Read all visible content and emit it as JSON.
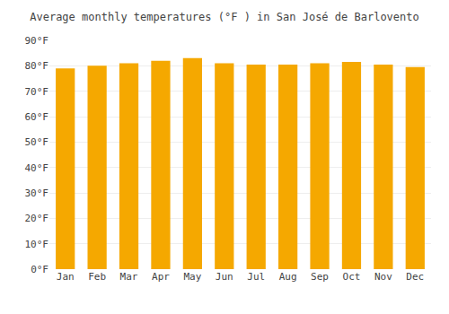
{
  "chart_data": {
    "type": "bar",
    "title": "Average monthly temperatures (°F ) in San José de Barlovento",
    "categories": [
      "Jan",
      "Feb",
      "Mar",
      "Apr",
      "May",
      "Jun",
      "Jul",
      "Aug",
      "Sep",
      "Oct",
      "Nov",
      "Dec"
    ],
    "values": [
      79,
      80,
      81,
      82,
      83,
      81,
      80.5,
      80.5,
      81,
      81.5,
      80.5,
      79.5
    ],
    "color": "#F5A800",
    "ylim": [
      0,
      90
    ],
    "yticks": [
      {
        "value": 0,
        "label": "0°F"
      },
      {
        "value": 10,
        "label": "10°F"
      },
      {
        "value": 20,
        "label": "20°F"
      },
      {
        "value": 30,
        "label": "30°F"
      },
      {
        "value": 40,
        "label": "40°F"
      },
      {
        "value": 50,
        "label": "50°F"
      },
      {
        "value": 60,
        "label": "60°F"
      },
      {
        "value": 70,
        "label": "70°F"
      },
      {
        "value": 80,
        "label": "80°F"
      },
      {
        "value": 90,
        "label": "90°F"
      }
    ],
    "grid": true
  }
}
